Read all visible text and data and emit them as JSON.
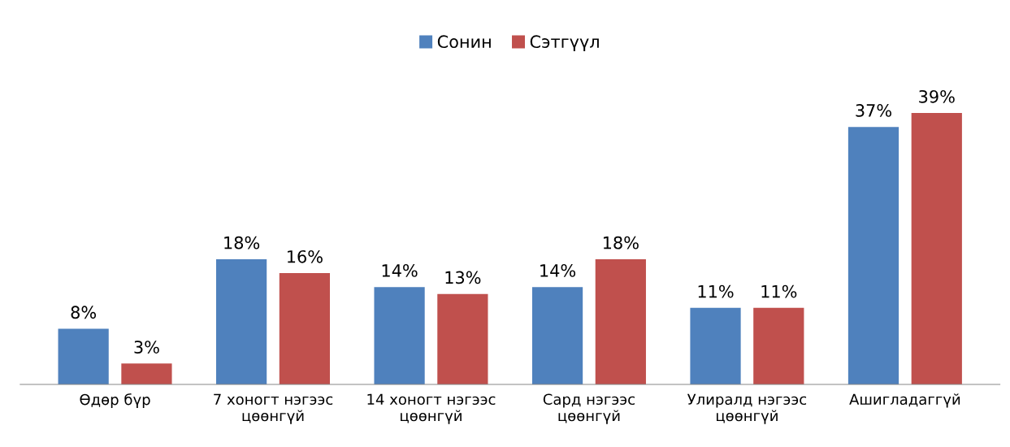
{
  "chart_data": {
    "type": "bar",
    "categories": [
      "Өдөр бүр",
      "7 хоногт нэгээс\nцөөнгүй",
      "14 хоногт нэгээс\nцөөнгүй",
      "Сард нэгээс\nцөөнгүй",
      "Улиралд нэгээс\nцөөнгүй",
      "Ашигладаггүй"
    ],
    "series": [
      {
        "name": "Сонин",
        "color": "#4f81bd",
        "values": [
          8,
          18,
          14,
          14,
          11,
          37
        ],
        "value_labels": [
          "8%",
          "18%",
          "14%",
          "14%",
          "11%",
          "37%"
        ]
      },
      {
        "name": "Сэтгүүл",
        "color": "#c0504d",
        "values": [
          3,
          16,
          13,
          18,
          11,
          39
        ],
        "value_labels": [
          "3%",
          "16%",
          "13%",
          "18%",
          "11%",
          "39%"
        ]
      }
    ],
    "legend": "top",
    "grid": false
  }
}
